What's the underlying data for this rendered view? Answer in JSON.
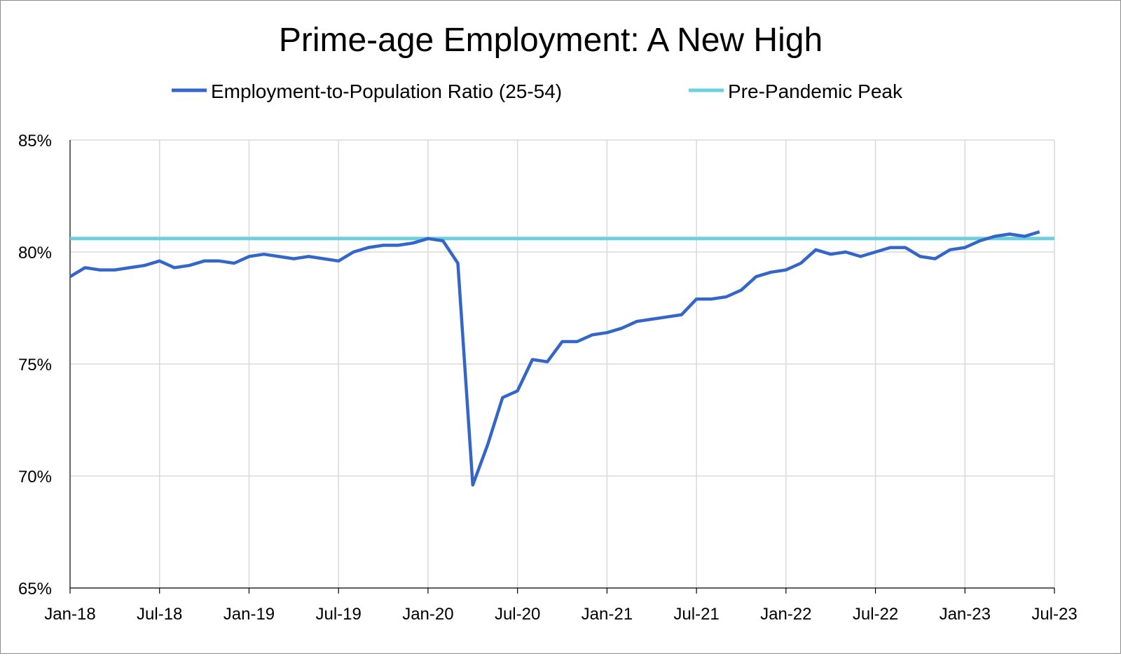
{
  "chart_data": {
    "type": "line",
    "title": "Prime-age Employment: A New High",
    "xlabel": "",
    "ylabel": "",
    "ylim": [
      65,
      85
    ],
    "y_ticks": [
      "65%",
      "70%",
      "75%",
      "80%",
      "85%"
    ],
    "y_tick_values": [
      65,
      70,
      75,
      80,
      85
    ],
    "x_ticks": [
      "Jan-18",
      "Jul-18",
      "Jan-19",
      "Jul-19",
      "Jan-20",
      "Jul-20",
      "Jan-21",
      "Jul-21",
      "Jan-22",
      "Jul-22",
      "Jan-23",
      "Jul-23"
    ],
    "x_range": [
      "Jan-18",
      "Jul-23"
    ],
    "grid": true,
    "legend_position": "top",
    "series": [
      {
        "name": "Employment-to-Population Ratio (25-54)",
        "color": "#3366c8",
        "start": "Jan-18",
        "frequency": "monthly",
        "values": [
          78.9,
          79.3,
          79.2,
          79.2,
          79.3,
          79.4,
          79.6,
          79.3,
          79.4,
          79.6,
          79.6,
          79.5,
          79.8,
          79.9,
          79.8,
          79.7,
          79.8,
          79.7,
          79.6,
          80.0,
          80.2,
          80.3,
          80.3,
          80.4,
          80.6,
          80.5,
          79.5,
          69.6,
          71.4,
          73.5,
          73.8,
          75.2,
          75.1,
          76.0,
          76.0,
          76.3,
          76.4,
          76.6,
          76.9,
          77.0,
          77.1,
          77.2,
          77.9,
          77.9,
          78.0,
          78.3,
          78.9,
          79.1,
          79.2,
          79.5,
          80.1,
          79.9,
          80.0,
          79.8,
          80.0,
          80.2,
          80.2,
          79.8,
          79.7,
          80.1,
          80.2,
          80.5,
          80.7,
          80.8,
          80.7,
          80.9
        ]
      },
      {
        "name": "Pre-Pandemic Peak",
        "color": "#6dd0dc",
        "value": 80.6
      }
    ]
  }
}
